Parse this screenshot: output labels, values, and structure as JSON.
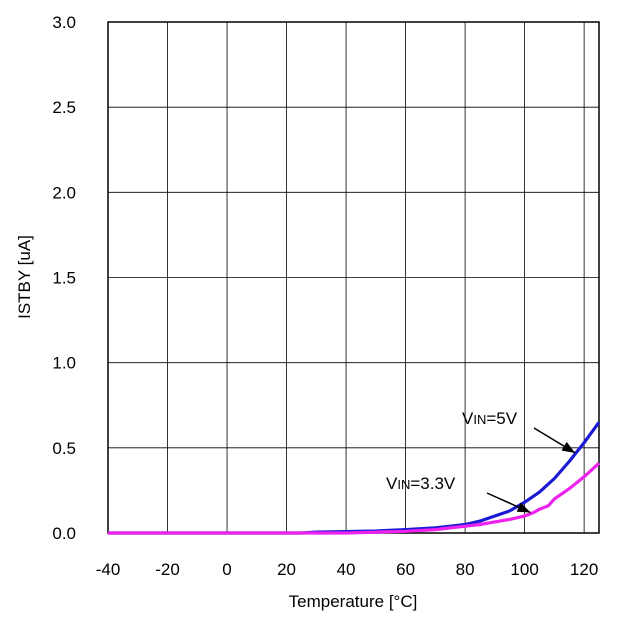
{
  "chart_data": {
    "type": "line",
    "title": "",
    "xlabel": "Temperature [°C]",
    "ylabel": "ISTBY [uA]",
    "xlim": [
      -40,
      125
    ],
    "ylim": [
      0,
      3.0
    ],
    "x_ticks": [
      -40,
      -20,
      0,
      20,
      40,
      60,
      80,
      100,
      120
    ],
    "x_tick_labels": [
      "-40",
      "-20",
      "0",
      "20",
      "40",
      "60",
      "80",
      "100",
      "120"
    ],
    "y_ticks": [
      0,
      0.5,
      1.0,
      1.5,
      2.0,
      2.5,
      3.0
    ],
    "y_tick_labels": [
      "0.0",
      "0.5",
      "1.0",
      "1.5",
      "2.0",
      "2.5",
      "3.0"
    ],
    "grid": true,
    "legend": "none",
    "series": [
      {
        "color": "#1a1ad6",
        "x": [
          -40,
          -20,
          0,
          20,
          25,
          30,
          40,
          50,
          60,
          65,
          70,
          75,
          80,
          85,
          90,
          95,
          100,
          105,
          110,
          115,
          120,
          125
        ],
        "y": [
          0,
          0,
          0,
          0,
          0,
          0.005,
          0.008,
          0.012,
          0.02,
          0.025,
          0.03,
          0.04,
          0.05,
          0.07,
          0.1,
          0.13,
          0.18,
          0.24,
          0.32,
          0.42,
          0.53,
          0.65
        ]
      },
      {
        "color": "#ee22ee",
        "x": [
          -40,
          -20,
          0,
          20,
          40,
          60,
          70,
          75,
          80,
          85,
          90,
          95,
          100,
          103,
          105,
          108,
          110,
          115,
          120,
          125
        ],
        "y": [
          0,
          0,
          0,
          0,
          0,
          0.01,
          0.02,
          0.03,
          0.04,
          0.05,
          0.065,
          0.08,
          0.1,
          0.12,
          0.14,
          0.16,
          0.2,
          0.26,
          0.33,
          0.41
        ]
      }
    ],
    "annotations": [
      {
        "text_main": "V",
        "text_sub": "IN",
        "text_value": "=5V",
        "arrow_to": [
          117,
          0.47
        ]
      },
      {
        "text_main": "V",
        "text_sub": "IN",
        "text_value": "=3.3V",
        "arrow_to": [
          102,
          0.12
        ]
      }
    ]
  }
}
